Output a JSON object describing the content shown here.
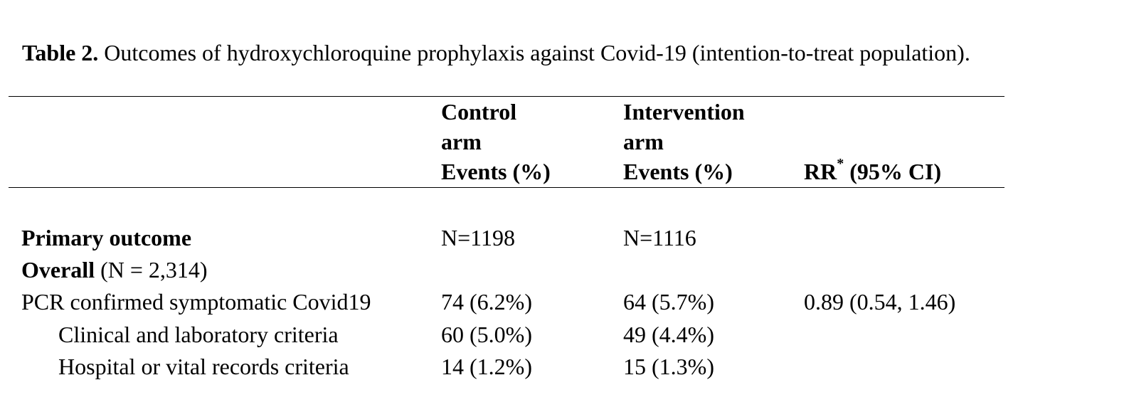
{
  "caption": {
    "label": "Table 2.",
    "text": " Outcomes of hydroxychloroquine prophylaxis against Covid-19 (intention-to-treat population)."
  },
  "header": {
    "control": [
      "Control",
      "arm",
      "Events (%)"
    ],
    "intervention": [
      "Intervention",
      "arm",
      "Events (%)"
    ],
    "rr_label": "RR",
    "rr_sup": "*",
    "rr_ci": " (95% CI)"
  },
  "rows": {
    "primary": {
      "label": "Primary outcome",
      "control": "N=1198",
      "intervention": "N=1116"
    },
    "overall": {
      "label_bold": "Overall",
      "label_rest": " (N = 2,314)"
    },
    "pcr": {
      "label": "PCR confirmed symptomatic Covid19",
      "control": "74 (6.2%)",
      "intervention": "64 (5.7%)",
      "rr": "0.89 (0.54, 1.46)"
    },
    "clinical": {
      "label": "Clinical and laboratory criteria",
      "control": "60 (5.0%)",
      "intervention": "49 (4.4%)"
    },
    "hospital": {
      "label": "Hospital or vital records criteria",
      "control": "14 (1.2%)",
      "intervention": "15 (1.3%)"
    }
  }
}
